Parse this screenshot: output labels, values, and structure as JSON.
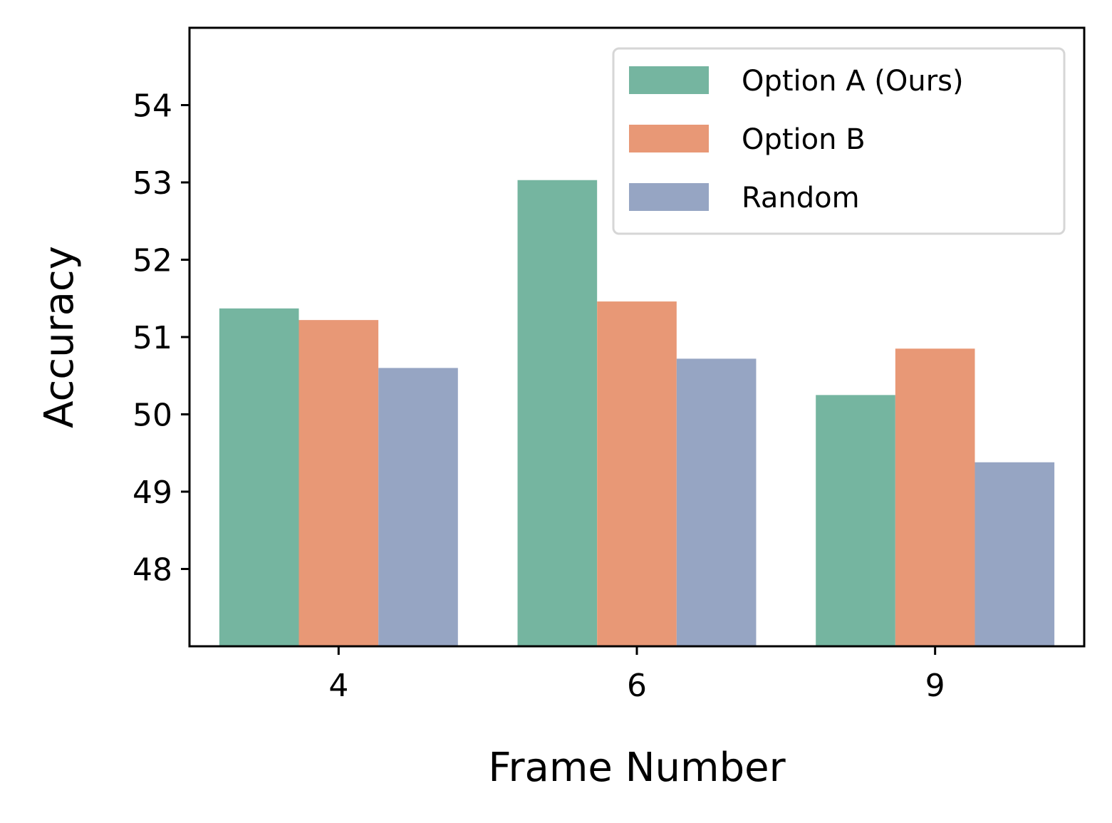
{
  "chart_data": {
    "type": "bar",
    "xlabel": "Frame Number",
    "ylabel": "Accuracy",
    "categories": [
      "4",
      "6",
      "9"
    ],
    "yticks": [
      48,
      49,
      50,
      51,
      52,
      53,
      54
    ],
    "ylim": [
      47,
      55
    ],
    "grid": false,
    "legend_position": "top-right",
    "series": [
      {
        "name": "Option A (Ours)",
        "color": "#75b5a0",
        "values": [
          51.37,
          53.03,
          50.25
        ]
      },
      {
        "name": "Option B",
        "color": "#e89876",
        "values": [
          51.22,
          51.46,
          50.85
        ]
      },
      {
        "name": "Random",
        "color": "#96a5c3",
        "values": [
          50.6,
          50.72,
          49.38
        ]
      }
    ]
  }
}
